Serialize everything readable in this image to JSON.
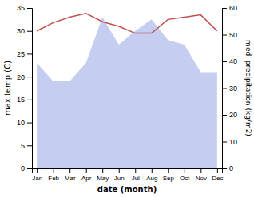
{
  "chart_data": {
    "type": "line",
    "xlabel": "date (month)",
    "ylabel": "max temp (C)",
    "y2label": "med. precipitation (kg/m2)",
    "categories": [
      "Jan",
      "Feb",
      "Mar",
      "Apr",
      "May",
      "Jun",
      "Jul",
      "Aug",
      "Sep",
      "Oct",
      "Nov",
      "Dec"
    ],
    "series": [
      {
        "type": "area",
        "color": "#c5cef0",
        "values": [
          23,
          19,
          19,
          23,
          33,
          27,
          30,
          32.5,
          28,
          27,
          21,
          21
        ]
      },
      {
        "type": "line",
        "color": "#c0504d",
        "values": [
          30.0,
          31.8,
          33.0,
          33.8,
          32.0,
          31.0,
          29.5,
          29.5,
          32.5,
          33.0,
          33.5,
          30.0
        ]
      }
    ],
    "ylim": [
      0,
      35
    ],
    "yticks": [
      0,
      5,
      10,
      15,
      20,
      25,
      30,
      35
    ],
    "y2lim": [
      0,
      60
    ],
    "y2ticks": [
      0,
      10,
      20,
      30,
      40,
      50,
      60
    ],
    "grid": false
  }
}
